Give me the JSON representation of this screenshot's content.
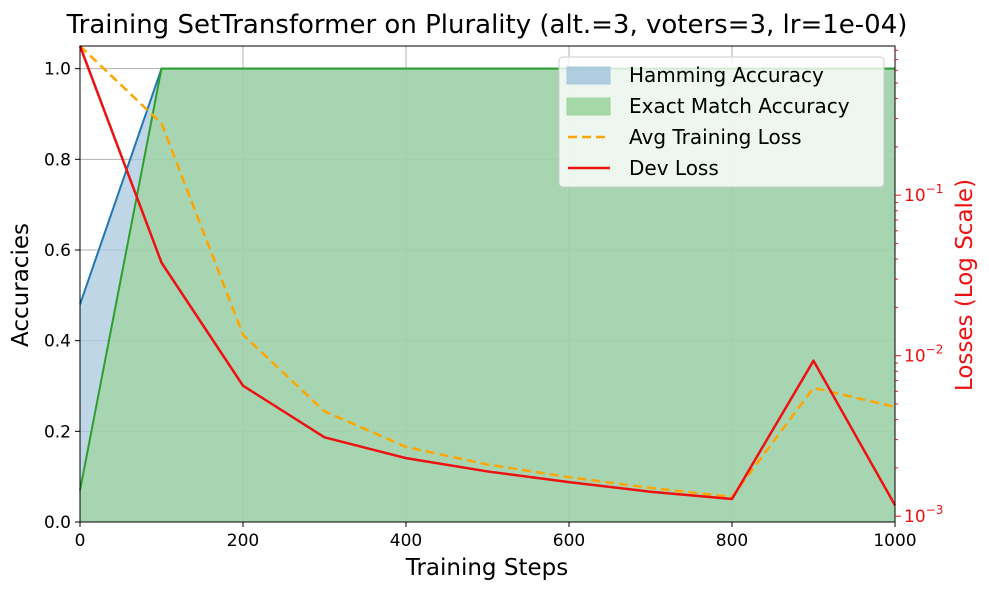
{
  "chart_data": {
    "type": "area",
    "title": "Training SetTransformer on Plurality (alt.=3, voters=3, lr=1e-04)",
    "xlabel": "Training Steps",
    "ylabel": "Accuracies",
    "y2label": "Losses (Log Scale)",
    "xlim": [
      0,
      1000
    ],
    "ylim": [
      0,
      1.05
    ],
    "y2lim": [
      0.00092,
      0.85
    ],
    "y2scale": "log",
    "grid": true,
    "legend_position": "top-right",
    "x_ticks": [
      "0",
      "200",
      "400",
      "600",
      "800",
      "1000"
    ],
    "y_ticks": [
      "0.0",
      "0.2",
      "0.4",
      "0.6",
      "0.8",
      "1.0"
    ],
    "y2_ticks": [
      {
        "base": "10",
        "exp": "−3"
      },
      {
        "base": "10",
        "exp": "−2"
      },
      {
        "base": "10",
        "exp": "−1"
      }
    ],
    "x": [
      0,
      100,
      200,
      300,
      400,
      500,
      600,
      700,
      800,
      900,
      1000
    ],
    "series": [
      {
        "name": "Hamming Accuracy",
        "kind": "area",
        "axis": "left",
        "color": "#1f77b4",
        "fill": "#a8c8de",
        "values": [
          0.48,
          1.0,
          1.0,
          1.0,
          1.0,
          1.0,
          1.0,
          1.0,
          1.0,
          1.0,
          1.0
        ]
      },
      {
        "name": "Exact Match Accuracy",
        "kind": "area",
        "axis": "left",
        "color": "#2ca02c",
        "fill": "#9fd49f",
        "values": [
          0.07,
          1.0,
          1.0,
          1.0,
          1.0,
          1.0,
          1.0,
          1.0,
          1.0,
          1.0,
          1.0
        ]
      },
      {
        "name": "Avg Training Loss",
        "kind": "line",
        "dash": true,
        "axis": "right",
        "color": "#ffa500",
        "values": [
          0.85,
          0.28,
          0.0135,
          0.0045,
          0.0027,
          0.0021,
          0.00175,
          0.0015,
          0.00132,
          0.0063,
          0.0048
        ]
      },
      {
        "name": "Dev Loss",
        "kind": "line",
        "dash": false,
        "axis": "right",
        "color": "#ee1111",
        "values": [
          0.85,
          0.038,
          0.0065,
          0.0031,
          0.0023,
          0.0019,
          0.00163,
          0.00142,
          0.00128,
          0.0093,
          0.00117
        ]
      }
    ]
  }
}
